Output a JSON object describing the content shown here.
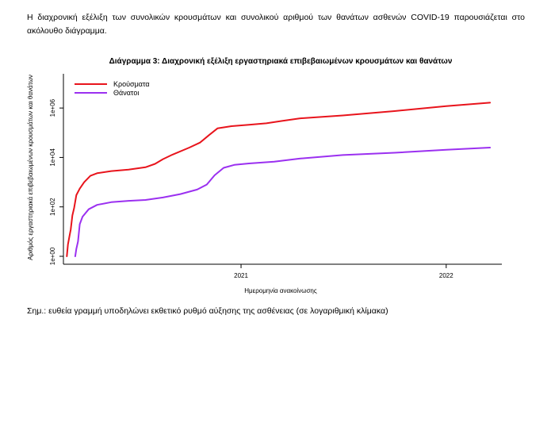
{
  "intro_text": "Η διαχρονική εξέλιξη των συνολικών κρουσμάτων και συνολικού αριθμού των θανάτων ασθενών COVID-19 παρουσιάζεται στο ακόλουθο διάγραμμα.",
  "note_text": "Σημ.: ευθεία γραμμή υπoδηλώνει εκθετικό ρυθμό αύξησης της ασθένειας (σε λογαριθμική κλίμακα)",
  "colors": {
    "cases": "#e8141c",
    "deaths": "#9b30f0",
    "axis": "#000000"
  },
  "chart_data": {
    "type": "line",
    "title": "Διάγραμμα 3: Διαχρονική εξέλιξη εργαστηριακά επιβεβαιωμένων κρουσμάτων και θανάτων",
    "xlabel": "Ημερομηνία ανακοίνωσης",
    "ylabel": "Αριθμός εργαστηριακά επιβεβαιωμένων κρουσμάτων και θανάτων",
    "x_scale": "date",
    "y_scale": "log10",
    "xlim": [
      "2020-02-20",
      "2022-04-10"
    ],
    "ylim": [
      1,
      10000000
    ],
    "x_ticks": [
      {
        "date": "2021-01-01",
        "label": "2021"
      },
      {
        "date": "2022-01-01",
        "label": "2022"
      }
    ],
    "y_ticks": [
      {
        "value": 1,
        "label": "1e+00"
      },
      {
        "value": 100,
        "label": "1e+02"
      },
      {
        "value": 10000,
        "label": "1e+04"
      },
      {
        "value": 1000000,
        "label": "1e+06"
      }
    ],
    "legend_position": "top-left",
    "grid": false,
    "series": [
      {
        "name": "Κρούσματα",
        "color": "#e8141c",
        "points": [
          [
            "2020-02-26",
            1
          ],
          [
            "2020-02-28",
            3
          ],
          [
            "2020-03-02",
            7
          ],
          [
            "2020-03-04",
            12
          ],
          [
            "2020-03-07",
            45
          ],
          [
            "2020-03-10",
            90
          ],
          [
            "2020-03-14",
            300
          ],
          [
            "2020-03-20",
            550
          ],
          [
            "2020-03-28",
            1000
          ],
          [
            "2020-04-08",
            1800
          ],
          [
            "2020-04-20",
            2300
          ],
          [
            "2020-05-15",
            2800
          ],
          [
            "2020-06-15",
            3200
          ],
          [
            "2020-07-15",
            4000
          ],
          [
            "2020-08-01",
            5500
          ],
          [
            "2020-08-15",
            8500
          ],
          [
            "2020-09-01",
            13000
          ],
          [
            "2020-10-01",
            25000
          ],
          [
            "2020-10-20",
            40000
          ],
          [
            "2020-11-05",
            80000
          ],
          [
            "2020-11-20",
            150000
          ],
          [
            "2020-12-15",
            185000
          ],
          [
            "2021-01-15",
            210000
          ],
          [
            "2021-02-15",
            240000
          ],
          [
            "2021-03-15",
            300000
          ],
          [
            "2021-04-15",
            380000
          ],
          [
            "2021-07-01",
            500000
          ],
          [
            "2021-10-01",
            750000
          ],
          [
            "2022-01-01",
            1200000
          ],
          [
            "2022-03-20",
            1650000
          ]
        ]
      },
      {
        "name": "Θάνατοι",
        "color": "#9b30f0",
        "points": [
          [
            "2020-03-12",
            1
          ],
          [
            "2020-03-14",
            2
          ],
          [
            "2020-03-17",
            4
          ],
          [
            "2020-03-20",
            20
          ],
          [
            "2020-03-25",
            40
          ],
          [
            "2020-04-05",
            80
          ],
          [
            "2020-04-20",
            120
          ],
          [
            "2020-05-15",
            155
          ],
          [
            "2020-06-15",
            175
          ],
          [
            "2020-07-15",
            190
          ],
          [
            "2020-08-15",
            240
          ],
          [
            "2020-09-15",
            330
          ],
          [
            "2020-10-15",
            500
          ],
          [
            "2020-11-01",
            800
          ],
          [
            "2020-11-15",
            1900
          ],
          [
            "2020-12-01",
            3800
          ],
          [
            "2020-12-20",
            5000
          ],
          [
            "2021-01-15",
            5700
          ],
          [
            "2021-03-01",
            6700
          ],
          [
            "2021-04-15",
            9000
          ],
          [
            "2021-07-01",
            12500
          ],
          [
            "2021-10-01",
            15500
          ],
          [
            "2022-01-01",
            20500
          ],
          [
            "2022-03-20",
            25000
          ]
        ]
      }
    ]
  }
}
